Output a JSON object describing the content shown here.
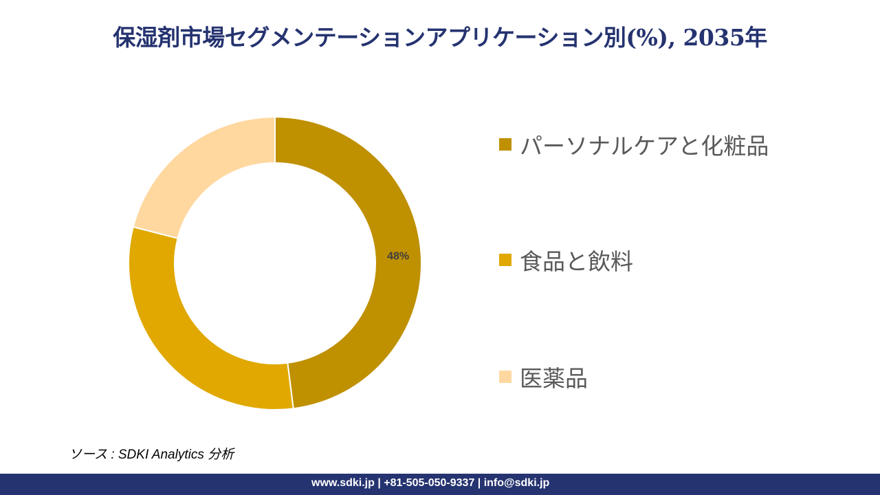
{
  "title": "保湿剤市場セグメンテーションアプリケーション別(%), 2035年",
  "chart_data": {
    "type": "pie",
    "donut": true,
    "categories": [
      "パーソナルケアと化粧品",
      "食品と飲料",
      "医薬品"
    ],
    "values": [
      48,
      31,
      21
    ],
    "data_labels": [
      "48%",
      "",
      ""
    ],
    "colors": [
      "#BF9000",
      "#E0A800",
      "#FFD8A0"
    ],
    "legend_position": "right"
  },
  "source": "ソース : SDKI Analytics 分析",
  "footer": "www.sdki.jp | +81-505-050-9337 | info@sdki.jp"
}
